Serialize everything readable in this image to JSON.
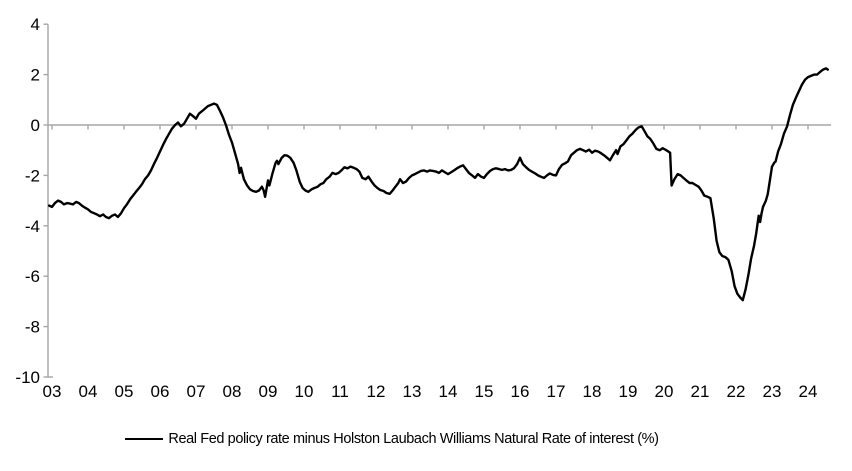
{
  "legend": {
    "label": "Real Fed policy rate minus Holston Laubach Williams Natural Rate of interest (%)"
  },
  "colors": {
    "line": "#000000",
    "axis": "#a6a6a6",
    "background": "#ffffff",
    "text": "#000000"
  },
  "chart_data": {
    "type": "line",
    "title": "",
    "xlabel": "",
    "ylabel": "",
    "grid": "zero-line-only",
    "legend_position": "bottom",
    "x_axis": {
      "tick_labels": [
        "03",
        "04",
        "05",
        "06",
        "07",
        "08",
        "09",
        "10",
        "11",
        "12",
        "13",
        "14",
        "15",
        "16",
        "17",
        "18",
        "19",
        "20",
        "21",
        "22",
        "23",
        "24"
      ],
      "tick_values": [
        3,
        4,
        5,
        6,
        7,
        8,
        9,
        10,
        11,
        12,
        13,
        14,
        15,
        16,
        17,
        18,
        19,
        20,
        21,
        22,
        23,
        24
      ],
      "range": [
        2.88,
        24.65
      ]
    },
    "y_axis": {
      "tick_labels": [
        "4",
        "2",
        "0",
        "-2",
        "-4",
        "-6",
        "-8",
        "-10"
      ],
      "tick_values": [
        4,
        2,
        0,
        -2,
        -4,
        -6,
        -8,
        -10
      ],
      "range": [
        -10,
        4
      ]
    },
    "series": [
      {
        "name": "Real Fed policy rate minus Holston Laubach Williams Natural Rate of interest (%)",
        "points": [
          [
            2.92,
            -3.2
          ],
          [
            3.0,
            -3.25
          ],
          [
            3.08,
            -3.1
          ],
          [
            3.17,
            -3.0
          ],
          [
            3.25,
            -3.05
          ],
          [
            3.33,
            -3.15
          ],
          [
            3.42,
            -3.1
          ],
          [
            3.5,
            -3.12
          ],
          [
            3.58,
            -3.15
          ],
          [
            3.67,
            -3.05
          ],
          [
            3.75,
            -3.1
          ],
          [
            3.83,
            -3.2
          ],
          [
            3.92,
            -3.28
          ],
          [
            4.0,
            -3.35
          ],
          [
            4.08,
            -3.45
          ],
          [
            4.17,
            -3.5
          ],
          [
            4.25,
            -3.55
          ],
          [
            4.33,
            -3.62
          ],
          [
            4.42,
            -3.55
          ],
          [
            4.5,
            -3.65
          ],
          [
            4.58,
            -3.7
          ],
          [
            4.67,
            -3.6
          ],
          [
            4.75,
            -3.55
          ],
          [
            4.83,
            -3.65
          ],
          [
            4.92,
            -3.5
          ],
          [
            5.0,
            -3.3
          ],
          [
            5.08,
            -3.15
          ],
          [
            5.17,
            -2.95
          ],
          [
            5.25,
            -2.8
          ],
          [
            5.33,
            -2.65
          ],
          [
            5.42,
            -2.5
          ],
          [
            5.5,
            -2.35
          ],
          [
            5.58,
            -2.15
          ],
          [
            5.67,
            -2.0
          ],
          [
            5.75,
            -1.8
          ],
          [
            5.83,
            -1.55
          ],
          [
            5.92,
            -1.3
          ],
          [
            6.0,
            -1.05
          ],
          [
            6.08,
            -0.8
          ],
          [
            6.17,
            -0.55
          ],
          [
            6.25,
            -0.35
          ],
          [
            6.33,
            -0.15
          ],
          [
            6.42,
            0.0
          ],
          [
            6.5,
            0.1
          ],
          [
            6.58,
            -0.05
          ],
          [
            6.67,
            0.05
          ],
          [
            6.75,
            0.25
          ],
          [
            6.83,
            0.45
          ],
          [
            6.92,
            0.35
          ],
          [
            7.0,
            0.25
          ],
          [
            7.08,
            0.45
          ],
          [
            7.17,
            0.55
          ],
          [
            7.25,
            0.65
          ],
          [
            7.33,
            0.75
          ],
          [
            7.42,
            0.8
          ],
          [
            7.5,
            0.85
          ],
          [
            7.58,
            0.8
          ],
          [
            7.67,
            0.55
          ],
          [
            7.75,
            0.3
          ],
          [
            7.83,
            0.0
          ],
          [
            7.92,
            -0.4
          ],
          [
            8.0,
            -0.7
          ],
          [
            8.08,
            -1.1
          ],
          [
            8.17,
            -1.55
          ],
          [
            8.21,
            -1.9
          ],
          [
            8.25,
            -1.7
          ],
          [
            8.33,
            -2.15
          ],
          [
            8.42,
            -2.4
          ],
          [
            8.5,
            -2.55
          ],
          [
            8.58,
            -2.62
          ],
          [
            8.67,
            -2.65
          ],
          [
            8.75,
            -2.6
          ],
          [
            8.83,
            -2.45
          ],
          [
            8.88,
            -2.6
          ],
          [
            8.92,
            -2.85
          ],
          [
            9.0,
            -2.2
          ],
          [
            9.04,
            -2.4
          ],
          [
            9.12,
            -1.95
          ],
          [
            9.21,
            -1.5
          ],
          [
            9.25,
            -1.42
          ],
          [
            9.29,
            -1.55
          ],
          [
            9.38,
            -1.3
          ],
          [
            9.46,
            -1.2
          ],
          [
            9.54,
            -1.22
          ],
          [
            9.62,
            -1.3
          ],
          [
            9.71,
            -1.5
          ],
          [
            9.79,
            -1.8
          ],
          [
            9.88,
            -2.25
          ],
          [
            9.96,
            -2.5
          ],
          [
            10.04,
            -2.6
          ],
          [
            10.12,
            -2.65
          ],
          [
            10.21,
            -2.55
          ],
          [
            10.29,
            -2.5
          ],
          [
            10.38,
            -2.45
          ],
          [
            10.46,
            -2.35
          ],
          [
            10.54,
            -2.3
          ],
          [
            10.62,
            -2.15
          ],
          [
            10.71,
            -2.05
          ],
          [
            10.79,
            -1.9
          ],
          [
            10.88,
            -1.95
          ],
          [
            10.96,
            -1.9
          ],
          [
            11.04,
            -1.8
          ],
          [
            11.12,
            -1.68
          ],
          [
            11.21,
            -1.72
          ],
          [
            11.29,
            -1.65
          ],
          [
            11.38,
            -1.7
          ],
          [
            11.46,
            -1.75
          ],
          [
            11.54,
            -1.85
          ],
          [
            11.62,
            -2.1
          ],
          [
            11.71,
            -2.15
          ],
          [
            11.79,
            -2.05
          ],
          [
            11.88,
            -2.25
          ],
          [
            11.96,
            -2.4
          ],
          [
            12.04,
            -2.5
          ],
          [
            12.12,
            -2.58
          ],
          [
            12.21,
            -2.62
          ],
          [
            12.29,
            -2.7
          ],
          [
            12.38,
            -2.73
          ],
          [
            12.46,
            -2.6
          ],
          [
            12.54,
            -2.45
          ],
          [
            12.62,
            -2.3
          ],
          [
            12.67,
            -2.15
          ],
          [
            12.75,
            -2.3
          ],
          [
            12.83,
            -2.25
          ],
          [
            12.92,
            -2.1
          ],
          [
            13.0,
            -2.0
          ],
          [
            13.08,
            -1.95
          ],
          [
            13.17,
            -1.88
          ],
          [
            13.25,
            -1.82
          ],
          [
            13.33,
            -1.8
          ],
          [
            13.42,
            -1.85
          ],
          [
            13.5,
            -1.8
          ],
          [
            13.58,
            -1.82
          ],
          [
            13.67,
            -1.85
          ],
          [
            13.75,
            -1.9
          ],
          [
            13.83,
            -1.8
          ],
          [
            13.92,
            -1.88
          ],
          [
            14.0,
            -1.95
          ],
          [
            14.08,
            -1.88
          ],
          [
            14.17,
            -1.8
          ],
          [
            14.25,
            -1.72
          ],
          [
            14.33,
            -1.65
          ],
          [
            14.42,
            -1.6
          ],
          [
            14.5,
            -1.75
          ],
          [
            14.58,
            -1.9
          ],
          [
            14.67,
            -2.0
          ],
          [
            14.75,
            -2.1
          ],
          [
            14.83,
            -1.95
          ],
          [
            14.92,
            -2.05
          ],
          [
            15.0,
            -2.1
          ],
          [
            15.08,
            -1.95
          ],
          [
            15.17,
            -1.82
          ],
          [
            15.25,
            -1.75
          ],
          [
            15.33,
            -1.72
          ],
          [
            15.42,
            -1.75
          ],
          [
            15.5,
            -1.78
          ],
          [
            15.58,
            -1.75
          ],
          [
            15.67,
            -1.8
          ],
          [
            15.75,
            -1.78
          ],
          [
            15.83,
            -1.72
          ],
          [
            15.92,
            -1.55
          ],
          [
            16.0,
            -1.3
          ],
          [
            16.08,
            -1.55
          ],
          [
            16.17,
            -1.68
          ],
          [
            16.25,
            -1.78
          ],
          [
            16.33,
            -1.85
          ],
          [
            16.42,
            -1.92
          ],
          [
            16.5,
            -2.0
          ],
          [
            16.58,
            -2.05
          ],
          [
            16.67,
            -2.1
          ],
          [
            16.75,
            -2.0
          ],
          [
            16.83,
            -1.92
          ],
          [
            16.92,
            -1.98
          ],
          [
            17.0,
            -2.0
          ],
          [
            17.08,
            -1.75
          ],
          [
            17.17,
            -1.58
          ],
          [
            17.25,
            -1.52
          ],
          [
            17.33,
            -1.45
          ],
          [
            17.42,
            -1.2
          ],
          [
            17.5,
            -1.1
          ],
          [
            17.58,
            -1.0
          ],
          [
            17.67,
            -0.95
          ],
          [
            17.75,
            -1.0
          ],
          [
            17.83,
            -1.05
          ],
          [
            17.92,
            -0.98
          ],
          [
            18.0,
            -1.1
          ],
          [
            18.08,
            -1.02
          ],
          [
            18.17,
            -1.05
          ],
          [
            18.25,
            -1.12
          ],
          [
            18.33,
            -1.2
          ],
          [
            18.42,
            -1.3
          ],
          [
            18.5,
            -1.4
          ],
          [
            18.58,
            -1.2
          ],
          [
            18.67,
            -1.0
          ],
          [
            18.71,
            -1.15
          ],
          [
            18.79,
            -0.85
          ],
          [
            18.88,
            -0.75
          ],
          [
            18.96,
            -0.6
          ],
          [
            19.04,
            -0.45
          ],
          [
            19.12,
            -0.35
          ],
          [
            19.21,
            -0.2
          ],
          [
            19.29,
            -0.1
          ],
          [
            19.38,
            -0.05
          ],
          [
            19.46,
            -0.25
          ],
          [
            19.54,
            -0.45
          ],
          [
            19.62,
            -0.55
          ],
          [
            19.71,
            -0.75
          ],
          [
            19.79,
            -0.95
          ],
          [
            19.88,
            -1.0
          ],
          [
            19.96,
            -0.92
          ],
          [
            20.04,
            -0.98
          ],
          [
            20.12,
            -1.05
          ],
          [
            20.17,
            -1.1
          ],
          [
            20.21,
            -2.4
          ],
          [
            20.29,
            -2.15
          ],
          [
            20.38,
            -1.95
          ],
          [
            20.46,
            -2.0
          ],
          [
            20.54,
            -2.1
          ],
          [
            20.62,
            -2.2
          ],
          [
            20.71,
            -2.3
          ],
          [
            20.79,
            -2.3
          ],
          [
            20.88,
            -2.38
          ],
          [
            20.96,
            -2.45
          ],
          [
            21.04,
            -2.6
          ],
          [
            21.12,
            -2.8
          ],
          [
            21.21,
            -2.85
          ],
          [
            21.29,
            -2.9
          ],
          [
            21.38,
            -3.7
          ],
          [
            21.46,
            -4.6
          ],
          [
            21.54,
            -5.05
          ],
          [
            21.62,
            -5.2
          ],
          [
            21.71,
            -5.25
          ],
          [
            21.79,
            -5.35
          ],
          [
            21.88,
            -5.8
          ],
          [
            21.96,
            -6.4
          ],
          [
            22.04,
            -6.7
          ],
          [
            22.12,
            -6.85
          ],
          [
            22.19,
            -6.95
          ],
          [
            22.27,
            -6.5
          ],
          [
            22.35,
            -5.9
          ],
          [
            22.42,
            -5.3
          ],
          [
            22.5,
            -4.8
          ],
          [
            22.56,
            -4.3
          ],
          [
            22.6,
            -3.9
          ],
          [
            22.63,
            -3.6
          ],
          [
            22.67,
            -3.85
          ],
          [
            22.71,
            -3.5
          ],
          [
            22.75,
            -3.25
          ],
          [
            22.83,
            -3.0
          ],
          [
            22.88,
            -2.75
          ],
          [
            22.92,
            -2.4
          ],
          [
            23.0,
            -1.65
          ],
          [
            23.06,
            -1.5
          ],
          [
            23.1,
            -1.45
          ],
          [
            23.17,
            -1.05
          ],
          [
            23.25,
            -0.75
          ],
          [
            23.33,
            -0.35
          ],
          [
            23.42,
            -0.05
          ],
          [
            23.5,
            0.4
          ],
          [
            23.58,
            0.8
          ],
          [
            23.67,
            1.1
          ],
          [
            23.75,
            1.35
          ],
          [
            23.83,
            1.6
          ],
          [
            23.92,
            1.8
          ],
          [
            24.0,
            1.9
          ],
          [
            24.08,
            1.95
          ],
          [
            24.17,
            2.0
          ],
          [
            24.25,
            2.0
          ],
          [
            24.33,
            2.1
          ],
          [
            24.42,
            2.2
          ],
          [
            24.5,
            2.25
          ],
          [
            24.55,
            2.2
          ]
        ]
      }
    ]
  }
}
